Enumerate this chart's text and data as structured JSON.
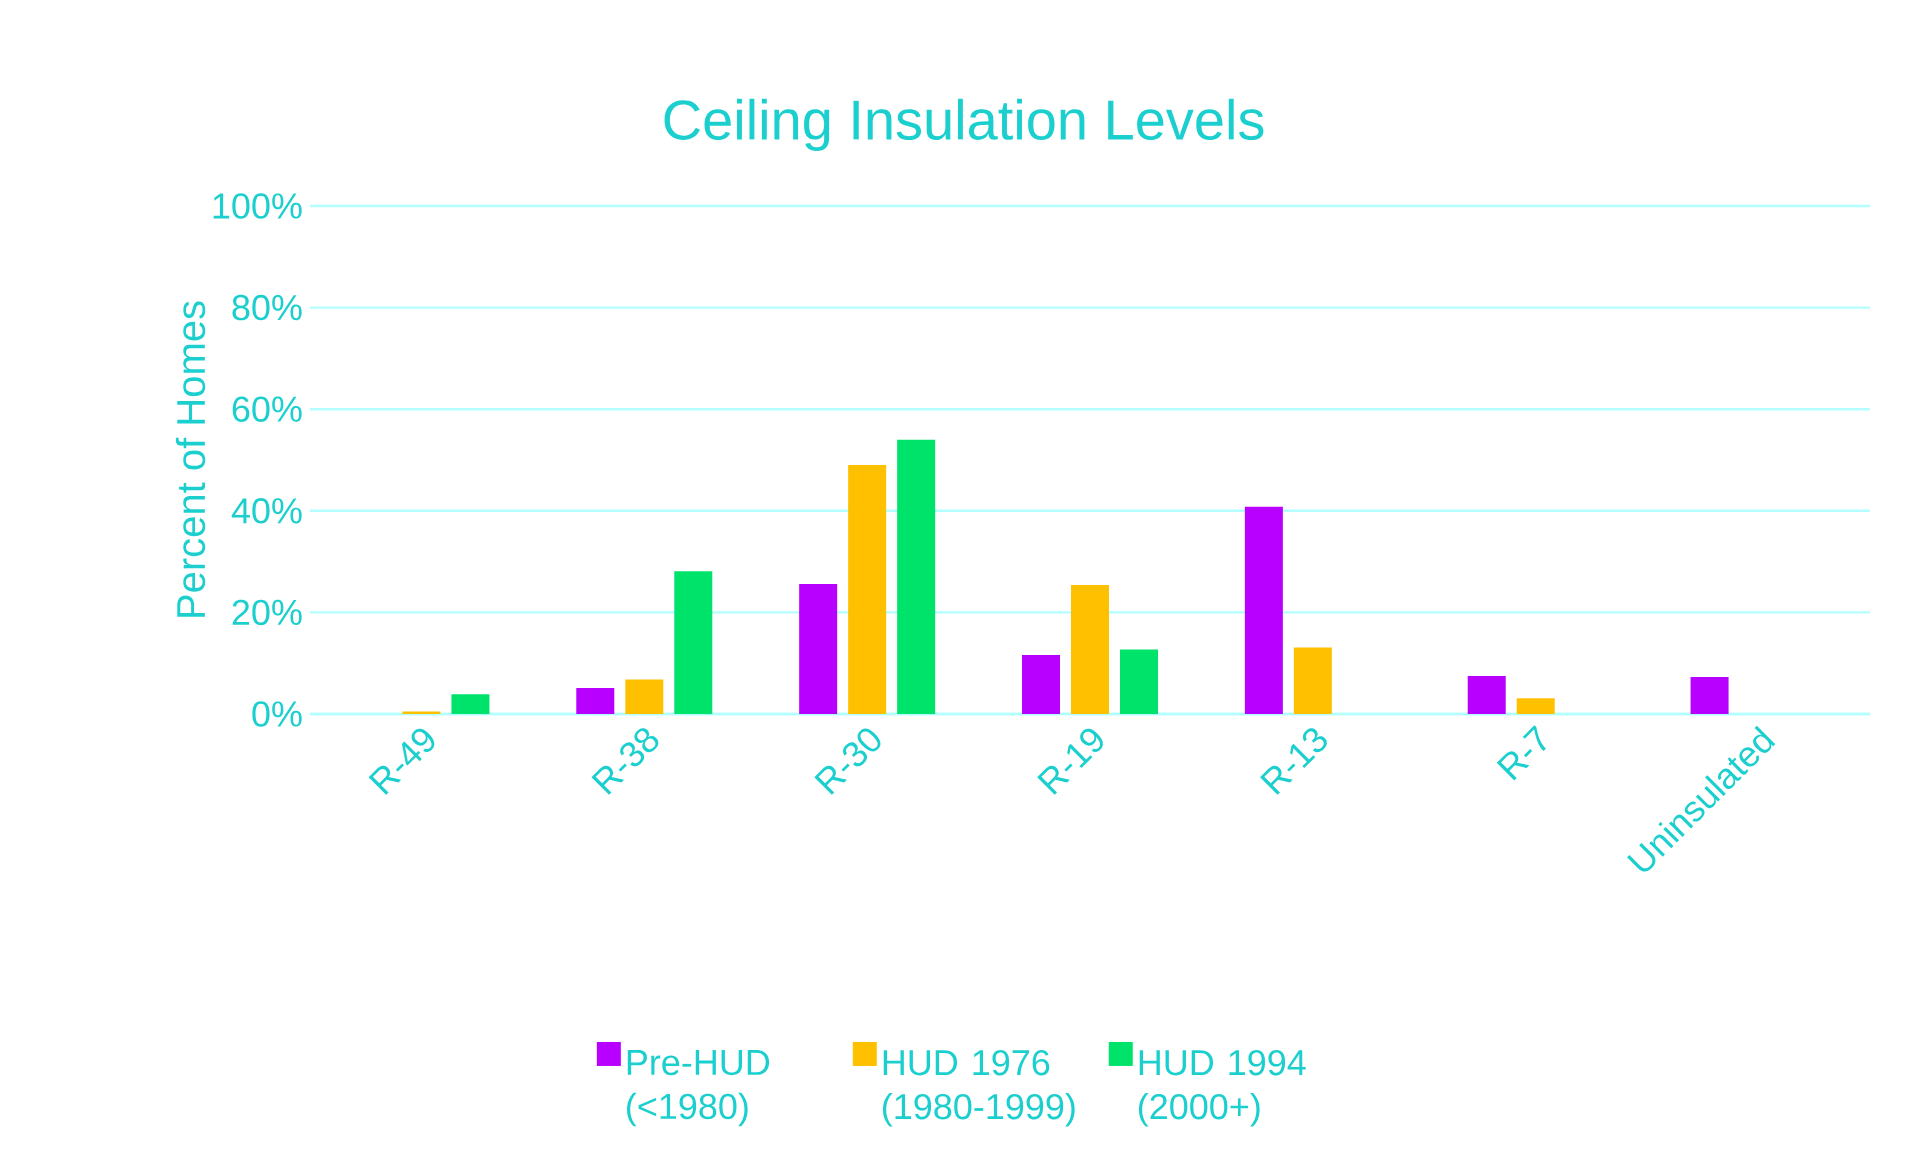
{
  "chart_data": {
    "type": "bar",
    "title": "Ceiling Insulation Levels",
    "ylabel": "Percent of Homes",
    "categories": [
      "R-49",
      "R-38",
      "R-30",
      "R-19",
      "R-13",
      "R-7",
      "Uninsulated"
    ],
    "series": [
      {
        "name": "Pre-HUD (<1980)",
        "color": "#b700ff",
        "values": [
          null,
          5.1,
          25.6,
          11.6,
          40.8,
          7.5,
          7.3
        ]
      },
      {
        "name": "HUD 1976 (1980-1999)",
        "color": "#ffc000",
        "values": [
          0.5,
          6.8,
          49,
          25.4,
          13.1,
          3.1,
          null
        ]
      },
      {
        "name": "HUD 1994 (2000+)",
        "color": "#00e36b",
        "values": [
          3.9,
          28.1,
          54,
          12.7,
          null,
          null,
          null
        ]
      }
    ],
    "ylim": [
      0,
      100
    ],
    "yticks": [
      {
        "value": 0,
        "label": "0%"
      },
      {
        "value": 20,
        "label": "20%"
      },
      {
        "value": 40,
        "label": "40%"
      },
      {
        "value": 60,
        "label": "60%"
      },
      {
        "value": 80,
        "label": "80%"
      },
      {
        "value": 100,
        "label": "100%"
      }
    ],
    "grid": "y",
    "legend": "bottom"
  }
}
